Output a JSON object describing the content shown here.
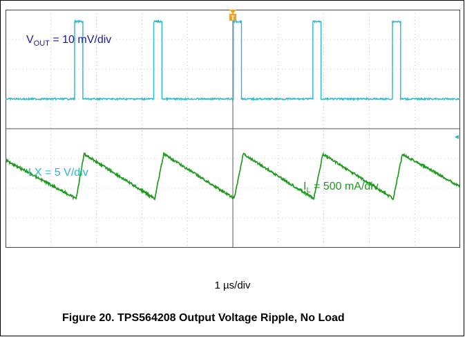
{
  "figure_caption": "Figure 20. TPS564208 Output Voltage Ripple, No Load",
  "time_scale_label": "1 µs/div",
  "colors": {
    "vout": "#1a1aa0",
    "lx": "#29b8c8",
    "il": "#1f9a1f",
    "grid": "#9a9a9a",
    "trigger_marker": "#f0a020"
  },
  "trigger_marker_label": "T",
  "chart_data": {
    "type": "line",
    "title": "",
    "xlabel": "1 µs/div",
    "ylabel": "",
    "grid": true,
    "grid_divisions": {
      "x": 10,
      "y": 8
    },
    "x_unit": "µs",
    "xlim": [
      0,
      10
    ],
    "switching_period_us": 1.75,
    "series": [
      {
        "name": "VOUT",
        "label": {
          "main": "V",
          "sub": "OUT",
          "rest": " = 10 mV/div"
        },
        "description": "ripple",
        "x": [
          0,
          0.44,
          0.88,
          1.31,
          1.75,
          2.19,
          2.63,
          3.06,
          3.5,
          3.94,
          4.38,
          4.81,
          5.25,
          5.69,
          6.13,
          6.56,
          7.0,
          7.44,
          7.88,
          8.31,
          8.75,
          9.19,
          9.63,
          10.0
        ],
        "y_div": [
          5.25,
          5.4,
          5.55,
          5.4,
          5.25,
          5.4,
          5.55,
          5.4,
          5.25,
          5.4,
          5.55,
          5.4,
          5.25,
          5.4,
          5.55,
          5.4,
          5.25,
          5.4,
          5.55,
          5.4,
          5.25,
          5.4,
          5.55,
          5.45
        ]
      },
      {
        "name": "LX",
        "label": {
          "main": "LX = 5 V/div"
        },
        "pulse_starts_us": [
          1.52,
          3.25,
          5.0,
          6.75,
          8.5
        ],
        "pulse_width_us": 0.18,
        "high_div": 3.6,
        "low_div": 1.0
      },
      {
        "name": "IL",
        "label": {
          "main": "I",
          "sub": "L",
          "rest": " = 500 mA/div"
        },
        "x": [
          0,
          1.55,
          1.73,
          3.28,
          3.48,
          5.03,
          5.23,
          6.78,
          6.98,
          8.53,
          8.73,
          10.0
        ],
        "y_div": [
          -1.05,
          -2.35,
          -0.85,
          -2.35,
          -0.85,
          -2.35,
          -0.85,
          -2.35,
          -0.85,
          -2.35,
          -0.85,
          -1.95
        ]
      }
    ]
  }
}
